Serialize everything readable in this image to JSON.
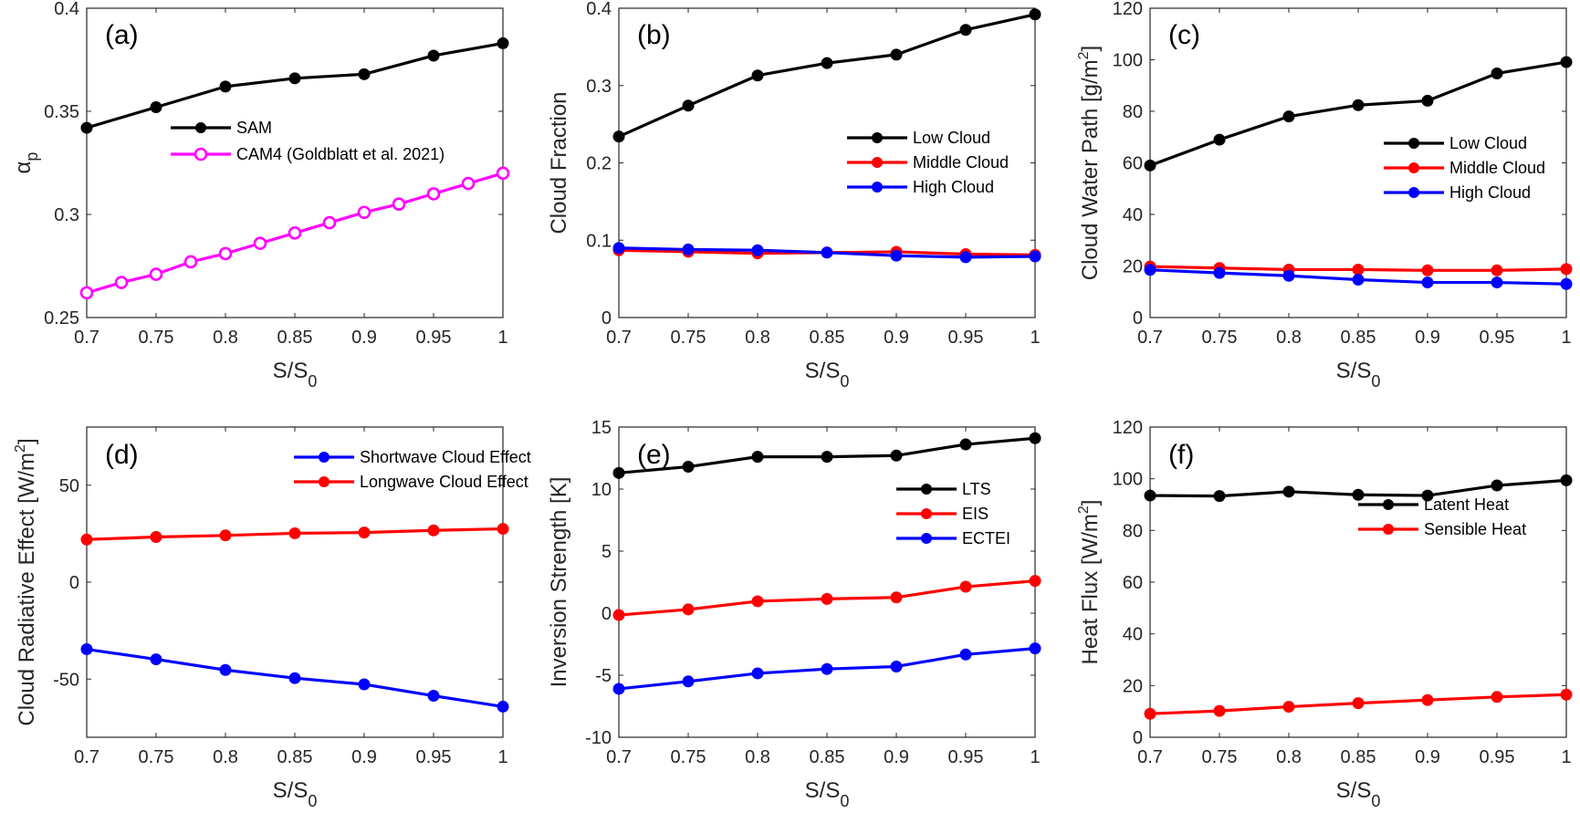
{
  "chart_data": [
    {
      "id": "a",
      "type": "line",
      "panel_label": "(a)",
      "xlabel": "S/S",
      "xlabel_sub": "0",
      "ylabel": "α",
      "ylabel_sub": "p",
      "xlim": [
        0.7,
        1.0
      ],
      "ylim": [
        0.25,
        0.4
      ],
      "xticks": [
        0.7,
        0.75,
        0.8,
        0.85,
        0.9,
        0.95,
        1
      ],
      "xtick_labels": [
        "0.7",
        "0.75",
        "0.8",
        "0.85",
        "0.9",
        "0.95",
        "1"
      ],
      "yticks": [
        0.25,
        0.3,
        0.35,
        0.4
      ],
      "ytick_labels": [
        "0.25",
        "0.3",
        "0.35",
        "0.4"
      ],
      "legend_position": "center",
      "series": [
        {
          "name": "SAM",
          "color": "#000000",
          "marker": "filled-circle",
          "x": [
            0.7,
            0.75,
            0.8,
            0.85,
            0.9,
            0.95,
            1.0
          ],
          "values": [
            0.342,
            0.352,
            0.362,
            0.366,
            0.368,
            0.377,
            0.383
          ]
        },
        {
          "name": "CAM4 (Goldblatt et al. 2021)",
          "color": "#ff00ff",
          "marker": "open-circle",
          "x": [
            0.7,
            0.725,
            0.75,
            0.775,
            0.8,
            0.825,
            0.85,
            0.875,
            0.9,
            0.925,
            0.95,
            0.975,
            1.0
          ],
          "values": [
            0.262,
            0.267,
            0.271,
            0.277,
            0.281,
            0.286,
            0.291,
            0.296,
            0.301,
            0.305,
            0.31,
            0.315,
            0.32
          ]
        }
      ]
    },
    {
      "id": "b",
      "type": "line",
      "panel_label": "(b)",
      "xlabel": "S/S",
      "xlabel_sub": "0",
      "ylabel": "Cloud Fraction",
      "ylabel_sub": "",
      "xlim": [
        0.7,
        1.0
      ],
      "ylim": [
        0,
        0.4
      ],
      "xticks": [
        0.7,
        0.75,
        0.8,
        0.85,
        0.9,
        0.95,
        1
      ],
      "xtick_labels": [
        "0.7",
        "0.75",
        "0.8",
        "0.85",
        "0.9",
        "0.95",
        "1"
      ],
      "yticks": [
        0,
        0.1,
        0.2,
        0.3,
        0.4
      ],
      "ytick_labels": [
        "0",
        "0.1",
        "0.2",
        "0.3",
        "0.4"
      ],
      "legend_position": "right",
      "series": [
        {
          "name": "Low Cloud",
          "color": "#000000",
          "marker": "filled-circle",
          "x": [
            0.7,
            0.75,
            0.8,
            0.85,
            0.9,
            0.95,
            1.0
          ],
          "values": [
            0.234,
            0.274,
            0.313,
            0.329,
            0.34,
            0.372,
            0.392
          ]
        },
        {
          "name": "Middle Cloud",
          "color": "#ff0000",
          "marker": "filled-circle",
          "x": [
            0.7,
            0.75,
            0.8,
            0.85,
            0.9,
            0.95,
            1.0
          ],
          "values": [
            0.087,
            0.085,
            0.083,
            0.084,
            0.085,
            0.082,
            0.081
          ]
        },
        {
          "name": "High Cloud",
          "color": "#0000ff",
          "marker": "filled-circle",
          "x": [
            0.7,
            0.75,
            0.8,
            0.85,
            0.9,
            0.95,
            1.0
          ],
          "values": [
            0.09,
            0.088,
            0.087,
            0.084,
            0.08,
            0.078,
            0.079
          ]
        }
      ]
    },
    {
      "id": "c",
      "type": "line",
      "panel_label": "(c)",
      "xlabel": "S/S",
      "xlabel_sub": "0",
      "ylabel": "Cloud Water Path [g/m",
      "ylabel_sup": "2",
      "ylabel_end": "]",
      "xlim": [
        0.7,
        1.0
      ],
      "ylim": [
        0,
        120
      ],
      "xticks": [
        0.7,
        0.75,
        0.8,
        0.85,
        0.9,
        0.95,
        1
      ],
      "xtick_labels": [
        "0.7",
        "0.75",
        "0.8",
        "0.85",
        "0.9",
        "0.95",
        "1"
      ],
      "yticks": [
        0,
        20,
        40,
        60,
        80,
        100,
        120
      ],
      "ytick_labels": [
        "0",
        "20",
        "40",
        "60",
        "80",
        "100",
        "120"
      ],
      "legend_position": "right",
      "series": [
        {
          "name": "Low Cloud",
          "color": "#000000",
          "marker": "filled-circle",
          "x": [
            0.7,
            0.75,
            0.8,
            0.85,
            0.9,
            0.95,
            1.0
          ],
          "values": [
            59.0,
            69.0,
            78.0,
            82.4,
            84.1,
            94.7,
            99.1
          ]
        },
        {
          "name": "Middle Cloud",
          "color": "#ff0000",
          "marker": "filled-circle",
          "x": [
            0.7,
            0.75,
            0.8,
            0.85,
            0.9,
            0.95,
            1.0
          ],
          "values": [
            19.8,
            19.2,
            18.6,
            18.6,
            18.3,
            18.3,
            18.8
          ]
        },
        {
          "name": "High Cloud",
          "color": "#0000ff",
          "marker": "filled-circle",
          "x": [
            0.7,
            0.75,
            0.8,
            0.85,
            0.9,
            0.95,
            1.0
          ],
          "values": [
            18.5,
            17.3,
            16.2,
            14.7,
            13.6,
            13.6,
            13.0
          ]
        }
      ]
    },
    {
      "id": "d",
      "type": "line",
      "panel_label": "(d)",
      "xlabel": "S/S",
      "xlabel_sub": "0",
      "ylabel": "Cloud Radiative Effect [W/m",
      "ylabel_sup": "2",
      "ylabel_end": "]",
      "xlim": [
        0.7,
        1.0
      ],
      "ylim": [
        -80,
        80
      ],
      "xticks": [
        0.7,
        0.75,
        0.8,
        0.85,
        0.9,
        0.95,
        1
      ],
      "xtick_labels": [
        "0.7",
        "0.75",
        "0.8",
        "0.85",
        "0.9",
        "0.95",
        "1"
      ],
      "yticks": [
        -50,
        0,
        50
      ],
      "ytick_labels": [
        "-50",
        "0",
        "50"
      ],
      "legend_position": "top-right",
      "series": [
        {
          "name": "Shortwave Cloud Effect",
          "color": "#0000ff",
          "marker": "filled-circle",
          "x": [
            0.7,
            0.75,
            0.8,
            0.85,
            0.9,
            0.95,
            1.0
          ],
          "values": [
            -34.6,
            -39.8,
            -45.3,
            -49.5,
            -52.7,
            -58.6,
            -64.2
          ]
        },
        {
          "name": "Longwave Cloud Effect",
          "color": "#ff0000",
          "marker": "filled-circle",
          "x": [
            0.7,
            0.75,
            0.8,
            0.85,
            0.9,
            0.95,
            1.0
          ],
          "values": [
            22.0,
            23.3,
            24.1,
            25.2,
            25.6,
            26.7,
            27.5
          ]
        }
      ]
    },
    {
      "id": "e",
      "type": "line",
      "panel_label": "(e)",
      "xlabel": "S/S",
      "xlabel_sub": "0",
      "ylabel": "Inversion Strength [K]",
      "xlim": [
        0.7,
        1.0
      ],
      "ylim": [
        -10,
        15
      ],
      "xticks": [
        0.7,
        0.75,
        0.8,
        0.85,
        0.9,
        0.95,
        1
      ],
      "xtick_labels": [
        "0.7",
        "0.75",
        "0.8",
        "0.85",
        "0.9",
        "0.95",
        "1"
      ],
      "yticks": [
        -10,
        -5,
        0,
        5,
        10,
        15
      ],
      "ytick_labels": [
        "-10",
        "-5",
        "0",
        "5",
        "10",
        "15"
      ],
      "legend_position": "top-right",
      "series": [
        {
          "name": "LTS",
          "color": "#000000",
          "marker": "filled-circle",
          "x": [
            0.7,
            0.75,
            0.8,
            0.85,
            0.9,
            0.95,
            1.0
          ],
          "values": [
            11.3,
            11.8,
            12.6,
            12.6,
            12.7,
            13.6,
            14.1
          ]
        },
        {
          "name": "EIS",
          "color": "#ff0000",
          "marker": "filled-circle",
          "x": [
            0.7,
            0.75,
            0.8,
            0.85,
            0.9,
            0.95,
            1.0
          ],
          "values": [
            -0.15,
            0.3,
            0.96,
            1.15,
            1.27,
            2.13,
            2.6
          ]
        },
        {
          "name": "ECTEI",
          "color": "#0000ff",
          "marker": "filled-circle",
          "x": [
            0.7,
            0.75,
            0.8,
            0.85,
            0.9,
            0.95,
            1.0
          ],
          "values": [
            -6.1,
            -5.5,
            -4.85,
            -4.5,
            -4.3,
            -3.33,
            -2.84
          ]
        }
      ]
    },
    {
      "id": "f",
      "type": "line",
      "panel_label": "(f)",
      "xlabel": "S/S",
      "xlabel_sub": "0",
      "ylabel": "Heat Flux [W/m",
      "ylabel_sup": "2",
      "ylabel_end": "]",
      "xlim": [
        0.7,
        1.0
      ],
      "ylim": [
        0,
        120
      ],
      "xticks": [
        0.7,
        0.75,
        0.8,
        0.85,
        0.9,
        0.95,
        1
      ],
      "xtick_labels": [
        "0.7",
        "0.75",
        "0.8",
        "0.85",
        "0.9",
        "0.95",
        "1"
      ],
      "yticks": [
        0,
        20,
        40,
        60,
        80,
        100,
        120
      ],
      "ytick_labels": [
        "0",
        "20",
        "40",
        "60",
        "80",
        "100",
        "120"
      ],
      "legend_position": "right",
      "series": [
        {
          "name": "Latent Heat",
          "color": "#000000",
          "marker": "filled-circle",
          "x": [
            0.7,
            0.75,
            0.8,
            0.85,
            0.9,
            0.95,
            1.0
          ],
          "values": [
            93.5,
            93.3,
            95.0,
            93.8,
            93.5,
            97.4,
            99.4
          ]
        },
        {
          "name": "Sensible Heat",
          "color": "#ff0000",
          "marker": "filled-circle",
          "x": [
            0.7,
            0.75,
            0.8,
            0.85,
            0.9,
            0.95,
            1.0
          ],
          "values": [
            9.1,
            10.2,
            11.8,
            13.2,
            14.4,
            15.6,
            16.5
          ]
        }
      ]
    }
  ]
}
